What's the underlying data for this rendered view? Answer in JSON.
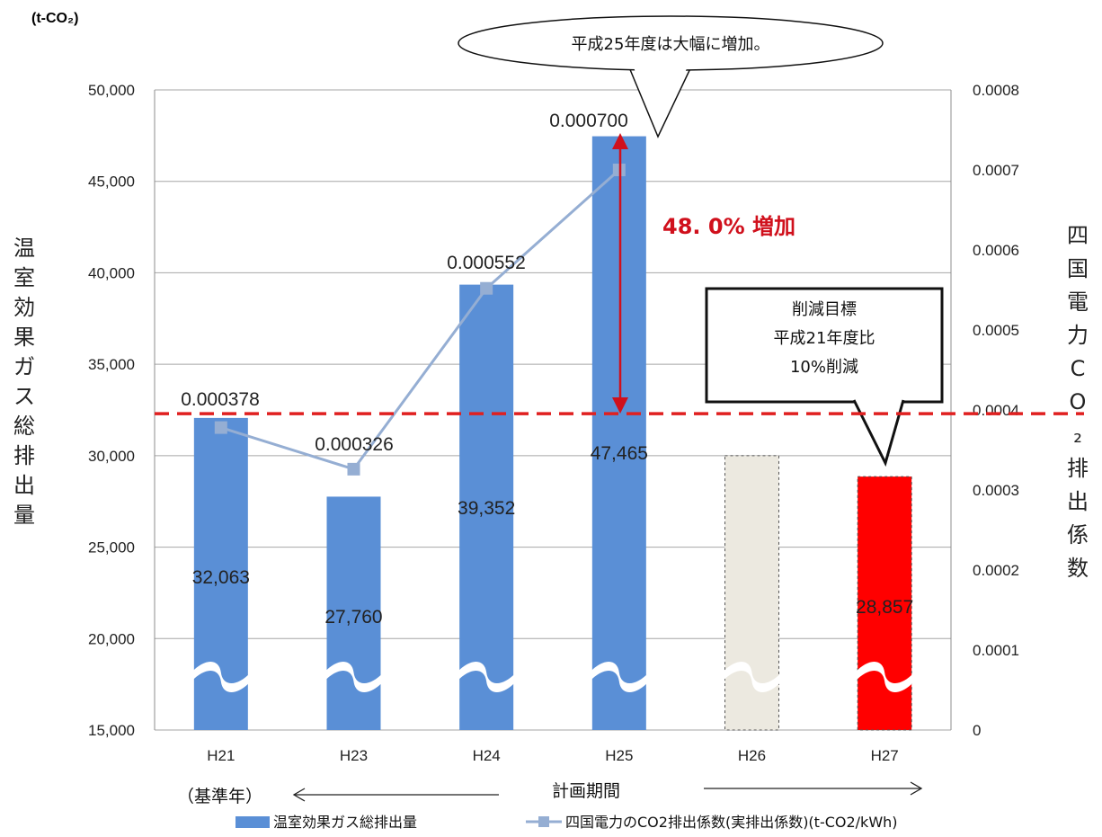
{
  "chart_data": {
    "type": "bar",
    "categories": [
      "H21",
      "H23",
      "H24",
      "H25",
      "H26",
      "H27"
    ],
    "series": [
      {
        "name": "温室効果ガス総排出量",
        "type": "bar",
        "axis": "left",
        "values": [
          32063,
          27760,
          39352,
          47465,
          30000,
          28857
        ],
        "labels": [
          "32,063",
          "27,760",
          "39,352",
          "47,465",
          "",
          "28,857"
        ],
        "colors": [
          "#5a8fd6",
          "#5a8fd6",
          "#5a8fd6",
          "#5a8fd6",
          "#ece9e0",
          "#ff0000"
        ]
      },
      {
        "name": "四国電力のCO2排出係数(実排出係数)(t-CO2/kWh)",
        "type": "line",
        "axis": "right",
        "values": [
          0.000378,
          0.000326,
          0.000552,
          0.0007,
          null,
          null
        ],
        "labels": [
          "0.000378",
          "0.000326",
          "0.000552",
          "0.000700",
          "",
          ""
        ],
        "color": "#95aed3"
      }
    ],
    "y_left": {
      "unit": "(t-CO₂)",
      "label": "温室効果ガス総排出量",
      "range": [
        15000,
        50000
      ],
      "ticks": [
        "15,000",
        "20,000",
        "25,000",
        "30,000",
        "35,000",
        "40,000",
        "45,000",
        "50,000"
      ]
    },
    "y_right": {
      "label": "四国電力CO₂排出係数",
      "range": [
        0,
        0.0008
      ],
      "ticks": [
        "0",
        "0.0001",
        "0.0002",
        "0.0003",
        "0.0004",
        "0.0005",
        "0.0006",
        "0.0007",
        "0.0008"
      ]
    },
    "xlabel": "計画期間",
    "base_year_label": "（基準年）",
    "target_line_value": 32300,
    "annotations": {
      "increase": "48. 0% 増加",
      "callout_top": "平成25年度は大幅に増加。",
      "callout_target": [
        "削減目標",
        "平成21年度比",
        "10%削減"
      ]
    },
    "colors": {
      "bar": "#5a8fd6",
      "line": "#95aed3",
      "target": "#e02020",
      "arrow": "#d0101c"
    },
    "grid": true,
    "legend": "bottom"
  }
}
